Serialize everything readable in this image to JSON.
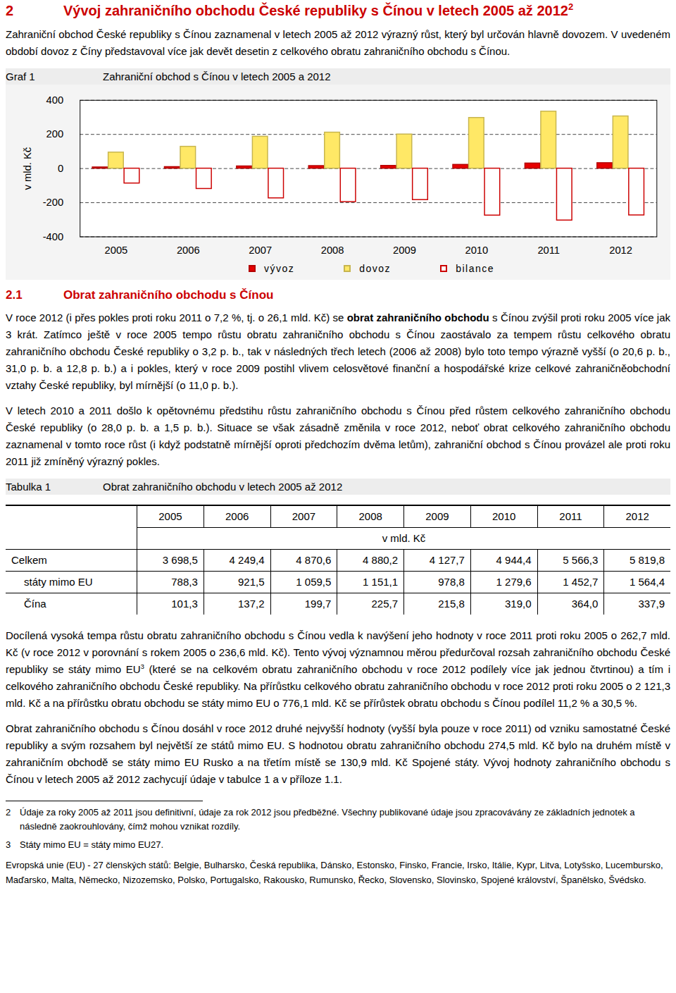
{
  "document": {
    "heading": {
      "number": "2",
      "text": "Vývoj zahraničního obchodu České republiky s Čínou v letech 2005 až 2012",
      "footnote": "2"
    },
    "intro": [
      [
        "Zahraniční obchod České republiky s Čínou zaznamenal v letech 2005 až 2012 výrazný růst, který byl určován hlavně dovozem. V uvedeném období dovoz z Číny představoval více jak devět desetin z celkového obratu zahraničního obchodu s Čínou."
      ]
    ],
    "graf_label": "Graf 1",
    "section": {
      "number": "2.1",
      "text": "Obrat zahraničního obchodu s Čínou"
    },
    "section_paragraphs": [
      [
        "V roce 2012 (i přes pokles proti roku 2011 o 7,2 %, tj. o 26,1 mld. Kč) se ",
        {
          "text": "obrat zahraničního obchodu",
          "bold": true
        },
        " s Čínou zvýšil proti roku 2005 více jak 3 krát. Zatímco ještě v roce 2005 tempo růstu obratu zahraničního obchodu s Čínou zaostávalo za tempem růstu celkového obratu zahraničního obchodu České republiky o 3,2 p. b., tak v následných třech letech (2006 až 2008) bylo toto tempo výrazně vyšší (o 20,6 p. b., 31,0 p. b. a 12,8 p. b.) a i pokles, který v roce 2009 postihl vlivem celosvětové finanční a hospodářské krize celkové zahraničněobchodní vztahy České republiky, byl mírnější (o 11,0 p. b.)."
      ],
      [
        "V letech 2010 a 2011 došlo k opětovnému předstihu růstu zahraničního obchodu s Čínou před růstem celkového zahraničního obchodu České republiky (o 28,0 p. b. a 1,5 p. b.). Situace se však zásadně změnila v roce 2012, neboť obrat celkového zahraničního obchodu zaznamenal v tomto roce růst (i když podstatně mírnější oproti předchozím dvěma letům), zahraniční obchod s Čínou provázel ale proti roku 2011 již zmíněný výrazný pokles."
      ]
    ],
    "table": {
      "label": "Tabulka 1",
      "title": "Obrat zahraničního obchodu v letech 2005 až 2012",
      "columns": [
        "2005",
        "2006",
        "2007",
        "2008",
        "2009",
        "2010",
        "2011",
        "2012"
      ],
      "unit": "v mld. Kč",
      "rows": [
        {
          "label": "Celkem",
          "indent": false,
          "values": [
            "3 698,5",
            "4 249,4",
            "4 870,6",
            "4 880,2",
            "4 127,7",
            "4 944,4",
            "5 566,3",
            "5 819,8"
          ]
        },
        {
          "label": "státy mimo EU",
          "indent": true,
          "values": [
            "788,3",
            "921,5",
            "1 059,5",
            "1 151,1",
            "978,8",
            "1 279,6",
            "1 452,7",
            "1 564,4"
          ]
        },
        {
          "label": "Čína",
          "indent": true,
          "values": [
            "101,3",
            "137,2",
            "199,7",
            "225,7",
            "215,8",
            "319,0",
            "364,0",
            "337,9"
          ]
        }
      ]
    },
    "closing_paragraphs": [
      [
        "Docílená vysoká tempa růstu obratu zahraničního obchodu s Čínou vedla k navýšení jeho hodnoty v roce 2011 proti roku 2005 o 262,7 mld. Kč (v roce 2012 v porovnání s rokem 2005 o 236,6 mld. Kč). Tento vývoj významnou měrou předurčoval rozsah zahraničního obchodu České republiky se státy mimo EU",
        {
          "text": "3",
          "sup": true
        },
        " (které se na celkovém obratu zahraničního obchodu v roce 2012 podílely více jak jednou čtvrtinou) a tím i celkového zahraničního obchodu České republiky. Na přírůstku celkového obratu zahraničního obchodu v roce 2012 proti roku 2005 o 2 121,3 mld. Kč a na přírůstku obratu obchodu se státy mimo EU o 776,1 mld. Kč se přírůstek obratu obchodu s Čínou podílel 11,2 % a 30,5 %."
      ],
      [
        "Obrat zahraničního obchodu s Čínou dosáhl v roce 2012 druhé nejvyšší hodnoty (vyšší byla pouze v roce 2011) od vzniku samostatné České republiky a svým rozsahem byl největší ze států mimo EU. S hodnotou obratu zahraničního obchodu 274,5 mld. Kč bylo na druhém místě v zahraničním obchodě se státy mimo EU Rusko a na třetím místě se 130,9 mld. Kč Spojené státy. Vývoj hodnoty zahraničního obchodu s Čínou v letech 2005 až 2012 zachycují údaje v tabulce 1 a v příloze 1.1."
      ]
    ],
    "footnotes": [
      {
        "number": "2",
        "text": "Údaje za roky 2005 až 2011 jsou definitivní, údaje za rok 2012 jsou předběžné. Všechny publikované údaje jsou zpracovávány ze základních jednotek a následně zaokrouhlovány, čímž mohou vznikat rozdíly."
      },
      {
        "number": "3",
        "text": "Státy mimo EU = státy mimo EU27."
      }
    ],
    "eu_note": "Evropská unie (EU) - 27 členských států: Belgie, Bulharsko, Česká republika, Dánsko, Estonsko, Finsko, Francie, Irsko, Itálie, Kypr, Litva, Lotyšsko, Lucembursko, Maďarsko, Malta, Německo, Nizozemsko, Polsko, Portugalsko, Rakousko, Rumunsko, Řecko, Slovensko, Slovinsko, Spojené království, Španělsko, Švédsko."
  },
  "chart_data": {
    "type": "bar",
    "title": "Zahraniční obchod s Čínou v letech 2005 a 2012",
    "y_label": "v mld. Kč",
    "categories": [
      "2005",
      "2006",
      "2007",
      "2008",
      "2009",
      "2010",
      "2011",
      "2012"
    ],
    "series": [
      {
        "name": "vývoz",
        "color": "#e60000",
        "values": [
          7,
          9,
          13,
          15,
          16,
          22,
          30,
          32
        ]
      },
      {
        "name": "dovoz",
        "color": "#ffe866",
        "values": [
          94,
          128,
          187,
          211,
          200,
          297,
          334,
          306
        ]
      },
      {
        "name": "bilance",
        "color": "#ffffff",
        "values": [
          -87,
          -119,
          -174,
          -196,
          -184,
          -275,
          -304,
          -274
        ]
      }
    ],
    "ylim": [
      -400,
      400
    ],
    "yticks": [
      -400,
      -200,
      0,
      200,
      400
    ],
    "grid": true,
    "legend": "bottom"
  }
}
